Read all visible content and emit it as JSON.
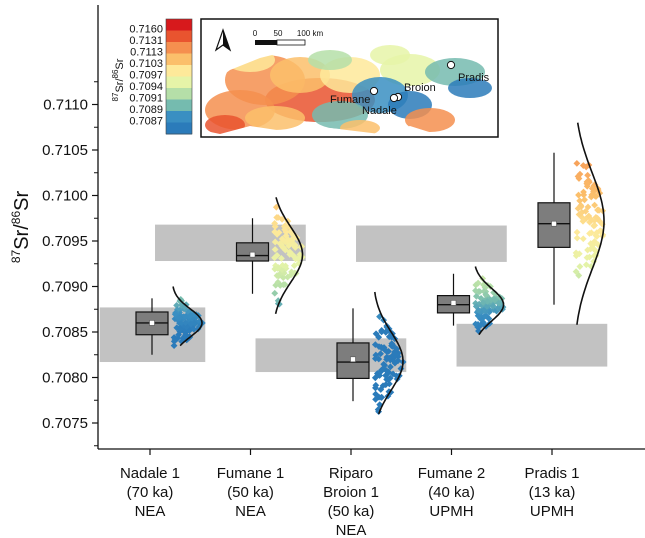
{
  "chart_data": {
    "type": "box-with-distribution",
    "ylabel_parts": [
      "87",
      "Sr/",
      "86",
      "Sr"
    ],
    "ylim": [
      0.7072,
      0.7114
    ],
    "yticks": [
      "0.7075",
      "0.7080",
      "0.7085",
      "0.7090",
      "0.7095",
      "0.7100",
      "0.7105",
      "0.7110"
    ],
    "grid": false,
    "categories": [
      {
        "lines": [
          "Nadale 1",
          "(70 ka)",
          "NEA"
        ]
      },
      {
        "lines": [
          "Fumane 1",
          "(50 ka)",
          "NEA"
        ]
      },
      {
        "lines": [
          "Riparo",
          "Broion 1",
          "(50 ka)",
          "NEA"
        ]
      },
      {
        "lines": [
          "Fumane 2",
          "(40 ka)",
          "UPMH"
        ]
      },
      {
        "lines": [
          "Pradis 1",
          "(13 ka)",
          "UPMH"
        ]
      }
    ],
    "boxes": [
      {
        "whisker_low": 0.70825,
        "q1": 0.70847,
        "median": 0.7086,
        "mean": 0.7086,
        "q3": 0.70872,
        "whisker_high": 0.70887
      },
      {
        "whisker_low": 0.70892,
        "q1": 0.70928,
        "median": 0.70934,
        "mean": 0.70935,
        "q3": 0.70948,
        "whisker_high": 0.70975
      },
      {
        "whisker_low": 0.70774,
        "q1": 0.70799,
        "median": 0.70817,
        "mean": 0.7082,
        "q3": 0.70838,
        "whisker_high": 0.70876
      },
      {
        "whisker_low": 0.70857,
        "q1": 0.70871,
        "median": 0.7088,
        "mean": 0.70882,
        "q3": 0.7089,
        "whisker_high": 0.70914
      },
      {
        "whisker_low": 0.7088,
        "q1": 0.70943,
        "median": 0.70969,
        "mean": 0.70969,
        "q3": 0.70992,
        "whisker_high": 0.71047
      }
    ],
    "distributions": [
      {
        "min": 0.70835,
        "max": 0.709,
        "mode": 0.7086
      },
      {
        "min": 0.7087,
        "max": 0.70998,
        "mode": 0.70935
      },
      {
        "min": 0.7076,
        "max": 0.70894,
        "mode": 0.70818
      },
      {
        "min": 0.70847,
        "max": 0.70922,
        "mode": 0.7088
      },
      {
        "min": 0.70858,
        "max": 0.7108,
        "mode": 0.70972
      }
    ],
    "shaded_bands": [
      {
        "category_span": [
          0,
          0.55
        ],
        "y_low": 0.70817,
        "y_high": 0.70877
      },
      {
        "category_span": [
          0.55,
          1.55
        ],
        "y_low": 0.70928,
        "y_high": 0.70968
      },
      {
        "category_span": [
          1.55,
          2.55
        ],
        "y_low": 0.70806,
        "y_high": 0.70843
      },
      {
        "category_span": [
          2.55,
          3.55
        ],
        "y_low": 0.70927,
        "y_high": 0.70967
      },
      {
        "category_span": [
          3.55,
          4.55
        ],
        "y_low": 0.70812,
        "y_high": 0.70859
      }
    ],
    "colorbar": {
      "label_parts": [
        "87",
        "Sr/",
        "86",
        "Sr"
      ],
      "values": [
        "0.7160",
        "0.7131",
        "0.7113",
        "0.7103",
        "0.7097",
        "0.7094",
        "0.7091",
        "0.7089",
        "0.7087"
      ],
      "colors": [
        "#d7191c",
        "#e9542f",
        "#f58f4f",
        "#fbbf6b",
        "#fee99a",
        "#e6f4a8",
        "#b5dfa8",
        "#75bbaf",
        "#3a8fc2",
        "#2b7bba"
      ]
    },
    "inset_map": {
      "sites": [
        "Pradis",
        "Broion",
        "Fumane",
        "Nadale"
      ],
      "scale_labels": [
        "0",
        "50",
        "100 km"
      ]
    }
  }
}
